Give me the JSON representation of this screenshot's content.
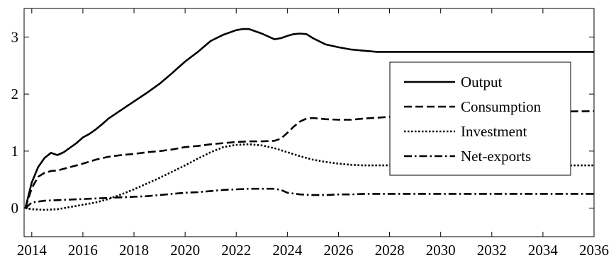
{
  "chart_data": {
    "type": "line",
    "title": "",
    "xlabel": "",
    "ylabel": "",
    "xlim": [
      2013.7,
      2036
    ],
    "ylim": [
      -0.5,
      3.5
    ],
    "xticks": [
      2014,
      2016,
      2018,
      2020,
      2022,
      2024,
      2026,
      2028,
      2030,
      2032,
      2034,
      2036
    ],
    "xtick_labels": [
      "2014",
      "2016",
      "2018",
      "2020",
      "2022",
      "2024",
      "2026",
      "2028",
      "2030",
      "2032",
      "2034",
      "2036"
    ],
    "yticks": [
      0,
      1,
      2,
      3
    ],
    "ytick_labels": [
      "0",
      "1",
      "2",
      "3"
    ],
    "grid": false,
    "legend_position": "center-right",
    "series": [
      {
        "name": "Output",
        "style": "solid",
        "x": [
          2013.75,
          2014.0,
          2014.25,
          2014.5,
          2014.75,
          2015.0,
          2015.25,
          2015.5,
          2015.75,
          2016.0,
          2016.25,
          2016.5,
          2016.75,
          2017.0,
          2017.5,
          2018.0,
          2018.5,
          2019.0,
          2019.5,
          2020.0,
          2020.5,
          2021.0,
          2021.5,
          2022.0,
          2022.25,
          2022.5,
          2022.75,
          2023.0,
          2023.25,
          2023.5,
          2023.75,
          2024.0,
          2024.25,
          2024.5,
          2024.75,
          2025.0,
          2025.5,
          2026.0,
          2026.5,
          2027.0,
          2027.25,
          2027.5,
          2028.0,
          2030.0,
          2032.0,
          2034.0,
          2036.0
        ],
        "values": [
          0.0,
          0.45,
          0.72,
          0.88,
          0.97,
          0.93,
          0.98,
          1.06,
          1.14,
          1.24,
          1.3,
          1.38,
          1.47,
          1.57,
          1.72,
          1.87,
          2.02,
          2.18,
          2.37,
          2.57,
          2.74,
          2.93,
          3.04,
          3.12,
          3.14,
          3.14,
          3.1,
          3.06,
          3.01,
          2.96,
          2.98,
          3.02,
          3.05,
          3.06,
          3.05,
          2.98,
          2.87,
          2.82,
          2.78,
          2.76,
          2.75,
          2.74,
          2.74,
          2.74,
          2.74,
          2.74,
          2.74
        ]
      },
      {
        "name": "Consumption",
        "style": "dashed",
        "x": [
          2013.75,
          2014.0,
          2014.25,
          2014.5,
          2014.75,
          2015.0,
          2015.5,
          2016.0,
          2016.5,
          2017.0,
          2017.5,
          2018.0,
          2018.5,
          2019.0,
          2019.5,
          2020.0,
          2020.5,
          2021.0,
          2021.5,
          2022.0,
          2022.5,
          2023.0,
          2023.5,
          2023.75,
          2024.0,
          2024.25,
          2024.5,
          2024.75,
          2025.0,
          2025.5,
          2026.0,
          2026.5,
          2027.0,
          2028.0,
          2030.0,
          2032.0,
          2034.0,
          2036.0
        ],
        "values": [
          0.0,
          0.35,
          0.55,
          0.62,
          0.65,
          0.66,
          0.72,
          0.78,
          0.85,
          0.9,
          0.93,
          0.95,
          0.98,
          1.0,
          1.03,
          1.07,
          1.09,
          1.12,
          1.14,
          1.16,
          1.17,
          1.17,
          1.18,
          1.22,
          1.32,
          1.43,
          1.52,
          1.57,
          1.58,
          1.56,
          1.55,
          1.55,
          1.57,
          1.6,
          1.65,
          1.68,
          1.69,
          1.7
        ]
      },
      {
        "name": "Investment",
        "style": "dotted",
        "x": [
          2013.75,
          2014.0,
          2014.5,
          2015.0,
          2015.5,
          2016.0,
          2016.5,
          2017.0,
          2017.5,
          2018.0,
          2018.5,
          2019.0,
          2019.5,
          2020.0,
          2020.5,
          2021.0,
          2021.5,
          2022.0,
          2022.5,
          2023.0,
          2023.5,
          2024.0,
          2024.5,
          2025.0,
          2025.5,
          2026.0,
          2026.5,
          2027.0,
          2027.5,
          2028.0,
          2030.0,
          2032.0,
          2034.0,
          2036.0
        ],
        "values": [
          0.0,
          -0.02,
          -0.03,
          -0.02,
          0.02,
          0.06,
          0.1,
          0.16,
          0.24,
          0.33,
          0.43,
          0.53,
          0.64,
          0.75,
          0.87,
          0.98,
          1.07,
          1.11,
          1.12,
          1.1,
          1.05,
          0.98,
          0.91,
          0.85,
          0.81,
          0.78,
          0.76,
          0.75,
          0.75,
          0.75,
          0.75,
          0.75,
          0.75,
          0.75
        ]
      },
      {
        "name": "Net-exports",
        "style": "dashdot",
        "x": [
          2013.75,
          2014.0,
          2014.5,
          2015.0,
          2015.5,
          2016.0,
          2016.5,
          2017.0,
          2017.5,
          2018.0,
          2018.5,
          2019.0,
          2019.5,
          2020.0,
          2020.5,
          2021.0,
          2021.5,
          2022.0,
          2022.5,
          2023.0,
          2023.5,
          2023.75,
          2024.0,
          2024.5,
          2025.0,
          2025.5,
          2026.0,
          2026.5,
          2027.0,
          2028.0,
          2030.0,
          2032.0,
          2034.0,
          2036.0
        ],
        "values": [
          0.0,
          0.1,
          0.13,
          0.14,
          0.15,
          0.16,
          0.17,
          0.18,
          0.19,
          0.2,
          0.21,
          0.23,
          0.25,
          0.27,
          0.28,
          0.3,
          0.32,
          0.33,
          0.34,
          0.34,
          0.34,
          0.32,
          0.27,
          0.24,
          0.23,
          0.23,
          0.24,
          0.24,
          0.25,
          0.25,
          0.25,
          0.25,
          0.25,
          0.25
        ]
      }
    ]
  }
}
